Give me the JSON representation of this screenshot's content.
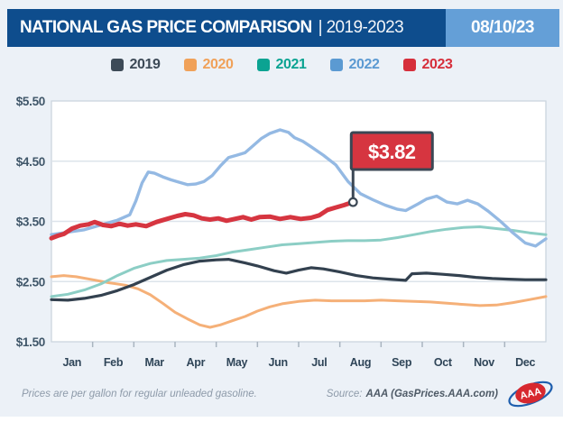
{
  "header": {
    "title": "NATIONAL GAS PRICE COMPARISON",
    "title_suffix": "| 2019-2023",
    "date_badge": "08/10/23"
  },
  "chart_data": {
    "type": "line",
    "title": "National Gas Price Comparison 2019-2023",
    "as_of_date": "08/10/23",
    "x_months": [
      "Jan",
      "Feb",
      "Mar",
      "Apr",
      "May",
      "Jun",
      "Jul",
      "Aug",
      "Sep",
      "Oct",
      "Nov",
      "Dec"
    ],
    "y_tick_labels": [
      "$5.50",
      "$4.50",
      "$3.50",
      "$2.50",
      "$1.50"
    ],
    "ylim": [
      1.5,
      5.5
    ],
    "grid": "horizontal",
    "legend_position": "top",
    "x_unit": "month fraction, 0 = Jan 1, 12 = Dec 31",
    "series": [
      {
        "name": "2019",
        "legend_color": "#3d4a57",
        "line_color": "#33414f",
        "width": 3.2,
        "points": [
          [
            0,
            2.2
          ],
          [
            0.4,
            2.19
          ],
          [
            0.8,
            2.22
          ],
          [
            1.2,
            2.27
          ],
          [
            1.6,
            2.35
          ],
          [
            2,
            2.45
          ],
          [
            2.4,
            2.57
          ],
          [
            2.8,
            2.69
          ],
          [
            3.2,
            2.78
          ],
          [
            3.6,
            2.84
          ],
          [
            4,
            2.86
          ],
          [
            4.3,
            2.87
          ],
          [
            4.7,
            2.81
          ],
          [
            5,
            2.76
          ],
          [
            5.4,
            2.68
          ],
          [
            5.7,
            2.64
          ],
          [
            6,
            2.69
          ],
          [
            6.3,
            2.73
          ],
          [
            6.6,
            2.71
          ],
          [
            7,
            2.66
          ],
          [
            7.4,
            2.6
          ],
          [
            7.8,
            2.56
          ],
          [
            8.2,
            2.54
          ],
          [
            8.6,
            2.52
          ],
          [
            8.75,
            2.63
          ],
          [
            9.1,
            2.64
          ],
          [
            9.5,
            2.62
          ],
          [
            9.9,
            2.6
          ],
          [
            10.3,
            2.57
          ],
          [
            10.7,
            2.55
          ],
          [
            11.1,
            2.54
          ],
          [
            11.5,
            2.53
          ],
          [
            12,
            2.53
          ]
        ]
      },
      {
        "name": "2020",
        "legend_color": "#f0a159",
        "line_color": "#f5b078",
        "width": 3,
        "points": [
          [
            0,
            2.58
          ],
          [
            0.3,
            2.6
          ],
          [
            0.6,
            2.58
          ],
          [
            1,
            2.53
          ],
          [
            1.4,
            2.48
          ],
          [
            1.8,
            2.44
          ],
          [
            2.1,
            2.38
          ],
          [
            2.4,
            2.28
          ],
          [
            2.7,
            2.14
          ],
          [
            3,
            1.99
          ],
          [
            3.3,
            1.88
          ],
          [
            3.6,
            1.78
          ],
          [
            3.85,
            1.74
          ],
          [
            4.1,
            1.78
          ],
          [
            4.4,
            1.85
          ],
          [
            4.7,
            1.92
          ],
          [
            5,
            2.01
          ],
          [
            5.3,
            2.08
          ],
          [
            5.6,
            2.13
          ],
          [
            6,
            2.17
          ],
          [
            6.4,
            2.19
          ],
          [
            6.8,
            2.18
          ],
          [
            7.2,
            2.18
          ],
          [
            7.6,
            2.18
          ],
          [
            8,
            2.19
          ],
          [
            8.4,
            2.18
          ],
          [
            8.8,
            2.17
          ],
          [
            9.2,
            2.16
          ],
          [
            9.6,
            2.14
          ],
          [
            10,
            2.12
          ],
          [
            10.4,
            2.1
          ],
          [
            10.8,
            2.11
          ],
          [
            11.2,
            2.15
          ],
          [
            11.6,
            2.2
          ],
          [
            12,
            2.25
          ]
        ]
      },
      {
        "name": "2021",
        "legend_color": "#0ba392",
        "line_color": "#8ccec5",
        "width": 3,
        "points": [
          [
            0,
            2.25
          ],
          [
            0.4,
            2.29
          ],
          [
            0.8,
            2.36
          ],
          [
            1.2,
            2.46
          ],
          [
            1.6,
            2.6
          ],
          [
            2,
            2.72
          ],
          [
            2.4,
            2.8
          ],
          [
            2.8,
            2.85
          ],
          [
            3.2,
            2.87
          ],
          [
            3.6,
            2.89
          ],
          [
            4,
            2.93
          ],
          [
            4.4,
            2.99
          ],
          [
            4.8,
            3.03
          ],
          [
            5.2,
            3.07
          ],
          [
            5.6,
            3.11
          ],
          [
            6,
            3.13
          ],
          [
            6.4,
            3.15
          ],
          [
            6.8,
            3.17
          ],
          [
            7.2,
            3.18
          ],
          [
            7.6,
            3.18
          ],
          [
            8,
            3.19
          ],
          [
            8.4,
            3.23
          ],
          [
            8.8,
            3.28
          ],
          [
            9.2,
            3.33
          ],
          [
            9.6,
            3.37
          ],
          [
            10,
            3.4
          ],
          [
            10.4,
            3.41
          ],
          [
            10.8,
            3.38
          ],
          [
            11.2,
            3.35
          ],
          [
            11.6,
            3.31
          ],
          [
            12,
            3.28
          ]
        ]
      },
      {
        "name": "2022",
        "legend_color": "#5b9ad2",
        "line_color": "#94b9e3",
        "width": 3.4,
        "points": [
          [
            0,
            3.28
          ],
          [
            0.4,
            3.32
          ],
          [
            0.8,
            3.36
          ],
          [
            1.2,
            3.44
          ],
          [
            1.6,
            3.52
          ],
          [
            1.9,
            3.61
          ],
          [
            2.05,
            3.84
          ],
          [
            2.2,
            4.14
          ],
          [
            2.35,
            4.32
          ],
          [
            2.5,
            4.3
          ],
          [
            2.7,
            4.24
          ],
          [
            2.9,
            4.19
          ],
          [
            3.1,
            4.15
          ],
          [
            3.3,
            4.11
          ],
          [
            3.5,
            4.12
          ],
          [
            3.7,
            4.16
          ],
          [
            3.9,
            4.26
          ],
          [
            4.1,
            4.42
          ],
          [
            4.3,
            4.56
          ],
          [
            4.5,
            4.6
          ],
          [
            4.7,
            4.64
          ],
          [
            4.9,
            4.76
          ],
          [
            5.1,
            4.88
          ],
          [
            5.3,
            4.96
          ],
          [
            5.55,
            5.02
          ],
          [
            5.75,
            4.98
          ],
          [
            5.9,
            4.89
          ],
          [
            6.1,
            4.83
          ],
          [
            6.3,
            4.74
          ],
          [
            6.6,
            4.6
          ],
          [
            6.9,
            4.44
          ],
          [
            7.2,
            4.16
          ],
          [
            7.5,
            3.96
          ],
          [
            7.8,
            3.86
          ],
          [
            8.1,
            3.77
          ],
          [
            8.4,
            3.7
          ],
          [
            8.6,
            3.68
          ],
          [
            8.9,
            3.79
          ],
          [
            9.1,
            3.87
          ],
          [
            9.35,
            3.92
          ],
          [
            9.6,
            3.82
          ],
          [
            9.85,
            3.79
          ],
          [
            10.1,
            3.85
          ],
          [
            10.35,
            3.79
          ],
          [
            10.6,
            3.67
          ],
          [
            10.9,
            3.5
          ],
          [
            11.2,
            3.31
          ],
          [
            11.5,
            3.14
          ],
          [
            11.75,
            3.09
          ],
          [
            12,
            3.21
          ]
        ]
      },
      {
        "name": "2023",
        "legend_color": "#d62f3b",
        "line_color": "#d63540",
        "width": 5,
        "points": [
          [
            0,
            3.22
          ],
          [
            0.15,
            3.26
          ],
          [
            0.3,
            3.29
          ],
          [
            0.5,
            3.38
          ],
          [
            0.7,
            3.43
          ],
          [
            0.9,
            3.45
          ],
          [
            1.05,
            3.49
          ],
          [
            1.25,
            3.44
          ],
          [
            1.45,
            3.42
          ],
          [
            1.65,
            3.46
          ],
          [
            1.85,
            3.43
          ],
          [
            2.05,
            3.45
          ],
          [
            2.3,
            3.42
          ],
          [
            2.55,
            3.49
          ],
          [
            2.8,
            3.54
          ],
          [
            3.05,
            3.59
          ],
          [
            3.25,
            3.62
          ],
          [
            3.45,
            3.6
          ],
          [
            3.65,
            3.55
          ],
          [
            3.85,
            3.53
          ],
          [
            4.05,
            3.55
          ],
          [
            4.25,
            3.51
          ],
          [
            4.45,
            3.54
          ],
          [
            4.65,
            3.57
          ],
          [
            4.85,
            3.53
          ],
          [
            5.05,
            3.57
          ],
          [
            5.3,
            3.58
          ],
          [
            5.55,
            3.54
          ],
          [
            5.8,
            3.57
          ],
          [
            6.05,
            3.54
          ],
          [
            6.3,
            3.56
          ],
          [
            6.5,
            3.6
          ],
          [
            6.7,
            3.69
          ],
          [
            6.9,
            3.73
          ],
          [
            7.1,
            3.77
          ],
          [
            7.32,
            3.82
          ]
        ]
      }
    ],
    "annotation": {
      "label": "$3.82",
      "series": "2023",
      "month_fraction": 7.32,
      "value": 3.82
    }
  },
  "footer": {
    "note": "Prices are per gallon for regular unleaded gasoline.",
    "source_prefix": "Source:",
    "source": "AAA (GasPrices.AAA.com)",
    "logo_text": "AAA"
  },
  "colors": {
    "header_bar": "#0e4d8d",
    "date_badge": "#649fd7",
    "page_background": "#ecf1f7",
    "plot_border": "#c9d3dd",
    "gridline": "#dde4eb",
    "axis_text": "#3f5669",
    "callout_fill": "#d63540",
    "callout_border": "#3b4754"
  }
}
